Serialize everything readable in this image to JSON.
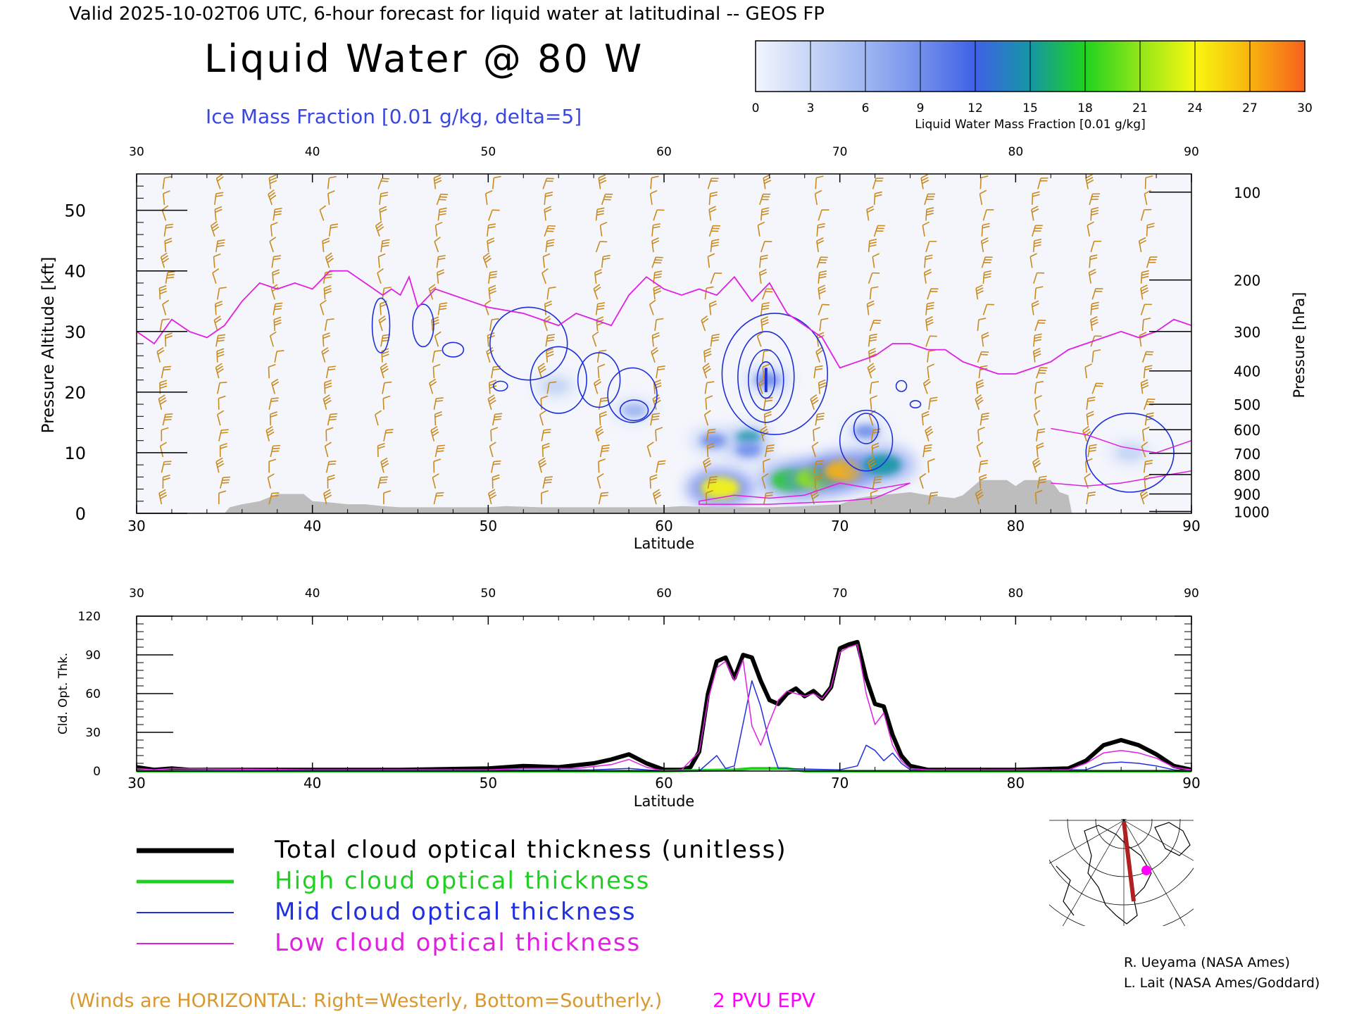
{
  "header": {
    "valid_line": "Valid 2025-10-02T06 UTC, 6-hour forecast for liquid water at latitudinal -- GEOS FP",
    "title": "Liquid Water @ 80 W",
    "subtitle": "Ice Mass Fraction [0.01 g/kg, delta=5]"
  },
  "colorbar": {
    "ticks": [
      "0",
      "3",
      "6",
      "9",
      "12",
      "15",
      "18",
      "21",
      "24",
      "27",
      "30"
    ],
    "label": "Liquid Water Mass Fraction [0.01 g/kg]",
    "colors": [
      "#f2f5fd",
      "#c6d5f6",
      "#9eb6f1",
      "#7390ec",
      "#3f61e6",
      "#1596a6",
      "#1fd21f",
      "#92e619",
      "#f8f710",
      "#f8b30f",
      "#f7601d"
    ]
  },
  "chart_data": [
    {
      "type": "heatmap",
      "xlabel": "Latitude",
      "ylabel": "Pressure Altitude [kft]",
      "y2label": "Pressure [hPa]",
      "xlim": [
        30,
        90
      ],
      "ylim": [
        0,
        56
      ],
      "x_ticks": [
        "30",
        "40",
        "50",
        "60",
        "70",
        "80",
        "90"
      ],
      "y_ticks": [
        "0",
        "10",
        "20",
        "30",
        "40",
        "50"
      ],
      "pressure_ticks": [
        {
          "label": "100",
          "alt": 53
        },
        {
          "label": "200",
          "alt": 38.5
        },
        {
          "label": "300",
          "alt": 30
        },
        {
          "label": "400",
          "alt": 23.5
        },
        {
          "label": "500",
          "alt": 18
        },
        {
          "label": "600",
          "alt": 13.8
        },
        {
          "label": "700",
          "alt": 9.9
        },
        {
          "label": "800",
          "alt": 6.4
        },
        {
          "label": "900",
          "alt": 3.2
        },
        {
          "label": "1000",
          "alt": 0.3
        }
      ],
      "liquid_water_blobs": [
        {
          "lat": 63.2,
          "alt": 4.2,
          "val": 24
        },
        {
          "lat": 64.8,
          "alt": 12.5,
          "val": 14
        },
        {
          "lat": 64.8,
          "alt": 10.5,
          "val": 10
        },
        {
          "lat": 62.8,
          "alt": 12,
          "val": 9
        },
        {
          "lat": 67.2,
          "alt": 5.5,
          "val": 18
        },
        {
          "lat": 68.6,
          "alt": 5.8,
          "val": 20
        },
        {
          "lat": 70.2,
          "alt": 7,
          "val": 26
        },
        {
          "lat": 72.4,
          "alt": 8,
          "val": 16
        },
        {
          "lat": 71.5,
          "alt": 13.5,
          "val": 8
        },
        {
          "lat": 65.9,
          "alt": 22,
          "val": 9
        },
        {
          "lat": 58.3,
          "alt": 17,
          "val": 6
        },
        {
          "lat": 86.5,
          "alt": 10,
          "val": 4
        },
        {
          "lat": 53.8,
          "alt": 21,
          "val": 3
        }
      ],
      "epv_2pvu_line": [
        [
          30,
          30
        ],
        [
          31,
          28
        ],
        [
          32,
          32
        ],
        [
          33,
          30
        ],
        [
          34,
          29
        ],
        [
          35,
          31
        ],
        [
          36,
          35
        ],
        [
          37,
          38
        ],
        [
          38,
          37
        ],
        [
          39,
          38
        ],
        [
          40,
          37
        ],
        [
          41,
          40
        ],
        [
          42,
          40
        ],
        [
          43,
          38
        ],
        [
          44,
          36
        ],
        [
          44.5,
          37
        ],
        [
          45,
          36
        ],
        [
          45.5,
          39
        ],
        [
          46,
          34
        ],
        [
          47,
          37
        ],
        [
          48,
          36
        ],
        [
          49,
          35
        ],
        [
          50,
          34
        ],
        [
          52,
          33
        ],
        [
          53,
          32
        ],
        [
          54,
          31
        ],
        [
          55,
          33
        ],
        [
          56,
          32
        ],
        [
          57,
          31
        ],
        [
          58,
          36
        ],
        [
          59,
          39
        ],
        [
          60,
          37
        ],
        [
          61,
          36
        ],
        [
          62,
          37
        ],
        [
          63,
          36
        ],
        [
          64,
          39
        ],
        [
          65,
          35
        ],
        [
          66,
          38
        ],
        [
          67,
          33
        ],
        [
          68,
          31
        ],
        [
          69,
          29
        ],
        [
          70,
          24
        ],
        [
          71,
          25
        ],
        [
          72,
          26
        ],
        [
          73,
          28
        ],
        [
          74,
          28
        ],
        [
          75,
          27
        ],
        [
          76,
          27
        ],
        [
          77,
          25
        ],
        [
          78,
          24
        ],
        [
          79,
          23
        ],
        [
          80,
          23
        ],
        [
          81,
          24
        ],
        [
          82,
          25
        ],
        [
          83,
          27
        ],
        [
          84,
          28
        ],
        [
          85,
          29
        ],
        [
          86,
          30
        ],
        [
          87,
          29
        ],
        [
          88,
          30
        ],
        [
          89,
          32
        ],
        [
          90,
          31
        ]
      ],
      "terrain": [
        [
          30,
          0
        ],
        [
          35,
          0
        ],
        [
          35.3,
          1
        ],
        [
          36,
          1.5
        ],
        [
          37,
          2
        ],
        [
          38,
          3.2
        ],
        [
          39.5,
          3.2
        ],
        [
          40,
          2
        ],
        [
          41,
          1.8
        ],
        [
          42,
          1.5
        ],
        [
          43,
          1.5
        ],
        [
          44,
          1.2
        ],
        [
          45,
          1
        ],
        [
          50,
          1
        ],
        [
          51,
          1.2
        ],
        [
          53,
          1
        ],
        [
          60,
          1
        ],
        [
          61,
          1.2
        ],
        [
          63,
          1
        ],
        [
          66,
          1
        ],
        [
          68,
          1.2
        ],
        [
          70,
          1.5
        ],
        [
          71,
          2.5
        ],
        [
          72,
          3
        ],
        [
          73,
          3.2
        ],
        [
          74,
          3.5
        ],
        [
          75,
          3
        ],
        [
          76.5,
          2.5
        ],
        [
          77,
          3
        ],
        [
          78,
          5.5
        ],
        [
          79.5,
          5.5
        ],
        [
          80,
          4.5
        ],
        [
          80.5,
          5.5
        ],
        [
          82,
          5.5
        ],
        [
          82.5,
          3.5
        ],
        [
          83,
          3
        ],
        [
          83.2,
          0
        ],
        [
          90,
          0
        ]
      ]
    },
    {
      "type": "line",
      "xlabel": "Latitude",
      "ylabel": "Cld. Opt. Thk.",
      "xlim": [
        30,
        90
      ],
      "ylim": [
        0,
        120
      ],
      "x_ticks": [
        "30",
        "40",
        "50",
        "60",
        "70",
        "80",
        "90"
      ],
      "y_ticks": [
        "0",
        "30",
        "60",
        "90",
        "120"
      ],
      "series": [
        {
          "name": "Total cloud optical thickness (unitless)",
          "color": "#000000",
          "width": 6,
          "points": [
            [
              30,
              3
            ],
            [
              31,
              1
            ],
            [
              32,
              2
            ],
            [
              33,
              1
            ],
            [
              40,
              1
            ],
            [
              45,
              1
            ],
            [
              50,
              2
            ],
            [
              52,
              4
            ],
            [
              54,
              3
            ],
            [
              56,
              6
            ],
            [
              57,
              9
            ],
            [
              58,
              13
            ],
            [
              59,
              6
            ],
            [
              60,
              1
            ],
            [
              61,
              1
            ],
            [
              61.5,
              3
            ],
            [
              62,
              15
            ],
            [
              62.5,
              60
            ],
            [
              63,
              85
            ],
            [
              63.5,
              88
            ],
            [
              64,
              72
            ],
            [
              64.5,
              90
            ],
            [
              65,
              88
            ],
            [
              65.5,
              70
            ],
            [
              66,
              55
            ],
            [
              66.5,
              52
            ],
            [
              67,
              60
            ],
            [
              67.5,
              64
            ],
            [
              68,
              58
            ],
            [
              68.5,
              62
            ],
            [
              69,
              56
            ],
            [
              69.5,
              65
            ],
            [
              70,
              95
            ],
            [
              70.5,
              98
            ],
            [
              71,
              100
            ],
            [
              71.5,
              72
            ],
            [
              72,
              52
            ],
            [
              72.5,
              50
            ],
            [
              73,
              28
            ],
            [
              73.5,
              12
            ],
            [
              74,
              4
            ],
            [
              75,
              1
            ],
            [
              80,
              1
            ],
            [
              83,
              2
            ],
            [
              84,
              8
            ],
            [
              85,
              20
            ],
            [
              86,
              24
            ],
            [
              87,
              20
            ],
            [
              88,
              13
            ],
            [
              89,
              4
            ],
            [
              90,
              1
            ]
          ]
        },
        {
          "name": "High cloud optical thickness",
          "color": "#20d020",
          "width": 4,
          "points": [
            [
              30,
              0
            ],
            [
              60,
              0
            ],
            [
              64,
              1
            ],
            [
              65,
              2
            ],
            [
              66,
              2
            ],
            [
              67,
              2
            ],
            [
              68,
              0
            ],
            [
              70,
              0
            ],
            [
              90,
              0
            ]
          ]
        },
        {
          "name": "Mid cloud optical thickness",
          "color": "#2030e0",
          "width": 1.5,
          "points": [
            [
              30,
              0
            ],
            [
              56,
              1
            ],
            [
              58,
              2
            ],
            [
              59,
              1
            ],
            [
              60,
              0
            ],
            [
              62,
              0
            ],
            [
              63,
              12
            ],
            [
              63.5,
              2
            ],
            [
              64,
              4
            ],
            [
              65,
              70
            ],
            [
              65.5,
              50
            ],
            [
              66,
              22
            ],
            [
              66.5,
              2
            ],
            [
              70,
              1
            ],
            [
              71,
              4
            ],
            [
              71.5,
              20
            ],
            [
              72,
              16
            ],
            [
              72.5,
              8
            ],
            [
              73,
              14
            ],
            [
              73.5,
              6
            ],
            [
              74,
              1
            ],
            [
              84,
              1
            ],
            [
              85,
              6
            ],
            [
              86,
              7
            ],
            [
              87,
              6
            ],
            [
              88,
              4
            ],
            [
              89,
              1
            ],
            [
              90,
              0
            ]
          ]
        },
        {
          "name": "Low cloud optical thickness",
          "color": "#e020e0",
          "width": 1.5,
          "points": [
            [
              30,
              2
            ],
            [
              31,
              1
            ],
            [
              32,
              2
            ],
            [
              40,
              1
            ],
            [
              50,
              1
            ],
            [
              52,
              2
            ],
            [
              55,
              2
            ],
            [
              57,
              5
            ],
            [
              58,
              9
            ],
            [
              59,
              3
            ],
            [
              60,
              0
            ],
            [
              61,
              1
            ],
            [
              62,
              15
            ],
            [
              62.5,
              55
            ],
            [
              63,
              80
            ],
            [
              63.5,
              85
            ],
            [
              64,
              70
            ],
            [
              64.5,
              86
            ],
            [
              65,
              35
            ],
            [
              65.5,
              20
            ],
            [
              66,
              38
            ],
            [
              66.5,
              55
            ],
            [
              67,
              62
            ],
            [
              67.5,
              60
            ],
            [
              68,
              58
            ],
            [
              68.5,
              60
            ],
            [
              69,
              56
            ],
            [
              69.5,
              65
            ],
            [
              70,
              92
            ],
            [
              70.5,
              96
            ],
            [
              71,
              98
            ],
            [
              71.5,
              60
            ],
            [
              72,
              36
            ],
            [
              72.5,
              45
            ],
            [
              73,
              20
            ],
            [
              73.5,
              8
            ],
            [
              74,
              2
            ],
            [
              75,
              1
            ],
            [
              83,
              1
            ],
            [
              84,
              6
            ],
            [
              85,
              14
            ],
            [
              86,
              16
            ],
            [
              87,
              14
            ],
            [
              88,
              10
            ],
            [
              89,
              3
            ],
            [
              90,
              1
            ]
          ]
        }
      ]
    }
  ],
  "legend": {
    "items": [
      {
        "label": "Total cloud optical thickness (unitless)",
        "color": "#000000",
        "width": 7
      },
      {
        "label": "High cloud optical thickness",
        "color": "#20d020",
        "width": 5
      },
      {
        "label": "Mid cloud optical thickness",
        "color": "#2030e0",
        "width": 2
      },
      {
        "label": "Low cloud optical thickness",
        "color": "#e020e0",
        "width": 2
      }
    ],
    "winds_note": "(Winds are HORIZONTAL: Right=Westerly, Bottom=Southerly.)",
    "epv_note": "2 PVU EPV",
    "credit1": "R. Ueyama (NASA Ames)",
    "credit2": "L. Lait (NASA Ames/Goddard)"
  },
  "colors": {
    "ice_contour": "#1f2fd8",
    "wind_barb": "#c98a1e",
    "epv": "#e020e0",
    "terrain": "#bdbdbd",
    "title_blue": "#3a46e0",
    "note_orange": "#d9982e",
    "magenta_text": "#ff00ff",
    "map_line": "#b02020",
    "map_dot": "#ff00ff"
  }
}
